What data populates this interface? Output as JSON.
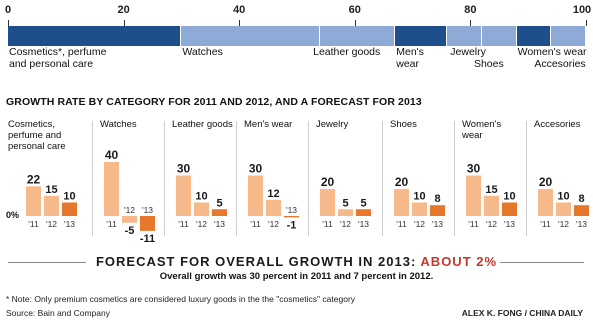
{
  "colors": {
    "dark_blue": "#1f4e8c",
    "light_blue": "#8eaad6",
    "bar_light": "#f6b98a",
    "bar_dark": "#e7772a",
    "accent_red": "#c0392b"
  },
  "share_chart": {
    "ticks": [
      "0",
      "20",
      "40",
      "60",
      "80",
      "100"
    ],
    "segments": [
      {
        "label": "Cosmetics*, perfume and personal care",
        "start": 0,
        "end": 30,
        "shade": "dark"
      },
      {
        "label": "Watches",
        "start": 30,
        "end": 54,
        "shade": "light"
      },
      {
        "label": "Leather goods",
        "start": 54,
        "end": 67,
        "shade": "light"
      },
      {
        "label": "Men's wear",
        "start": 67,
        "end": 76,
        "shade": "dark"
      },
      {
        "label": "Jewelry",
        "start": 76,
        "end": 82,
        "shade": "light"
      },
      {
        "label": "Shoes",
        "start": 82,
        "end": 88,
        "shade": "light"
      },
      {
        "label": "Women's wear",
        "start": 88,
        "end": 94,
        "shade": "dark"
      },
      {
        "label": "Accesories",
        "start": 94,
        "end": 100,
        "shade": "light"
      }
    ]
  },
  "section_title": "GROWTH RATE BY CATEGORY FOR 2011 AND 2012, AND A FORECAST FOR 2013",
  "zero_label": "0%",
  "chart_data": {
    "type": "bar",
    "categories": [
      "'11",
      "'12",
      "'13"
    ],
    "panels": [
      {
        "name": "Cosmetics, perfume and personal care",
        "values": [
          22,
          15,
          10
        ]
      },
      {
        "name": "Watches",
        "values": [
          40,
          -5,
          -11
        ]
      },
      {
        "name": "Leather goods",
        "values": [
          30,
          10,
          5
        ]
      },
      {
        "name": "Men's wear",
        "values": [
          30,
          12,
          -1
        ]
      },
      {
        "name": "Jewelry",
        "values": [
          20,
          5,
          5
        ]
      },
      {
        "name": "Shoes",
        "values": [
          20,
          10,
          8
        ]
      },
      {
        "name": "Women's wear",
        "values": [
          30,
          15,
          10
        ]
      },
      {
        "name": "Accesories",
        "values": [
          20,
          10,
          8
        ]
      }
    ]
  },
  "forecast": {
    "text": "FORECAST FOR OVERALL GROWTH IN 2013: ",
    "highlight": "ABOUT 2%",
    "subtext": "Overall growth was 30 percent in 2011 and 7 percent in 2012."
  },
  "note": "* Note: Only premium cosmetics are considered luxury goods in the the \"cosmetics\" category",
  "source": "Source: Bain and Company",
  "credit": "ALEX K. FONG / CHINA DAILY"
}
